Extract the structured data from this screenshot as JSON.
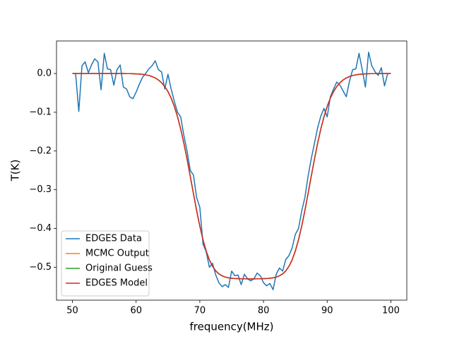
{
  "chart_data": {
    "type": "line",
    "xlabel": "frequency(MHz)",
    "ylabel": "T(K)",
    "x": [
      50,
      50.5,
      51,
      51.5,
      52,
      52.5,
      53,
      53.5,
      54,
      54.5,
      55,
      55.5,
      56,
      56.5,
      57,
      57.5,
      58,
      58.5,
      59,
      59.5,
      60,
      60.5,
      61,
      61.5,
      62,
      62.5,
      63,
      63.5,
      64,
      64.5,
      65,
      65.5,
      66,
      66.5,
      67,
      67.5,
      68,
      68.5,
      69,
      69.5,
      70,
      70.5,
      71,
      71.5,
      72,
      72.5,
      73,
      73.5,
      74,
      74.5,
      75,
      75.5,
      76,
      76.5,
      77,
      77.5,
      78,
      78.5,
      79,
      79.5,
      80,
      80.5,
      81,
      81.5,
      82,
      82.5,
      83,
      83.5,
      84,
      84.5,
      85,
      85.5,
      86,
      86.5,
      87,
      87.5,
      88,
      88.5,
      89,
      89.5,
      90,
      90.5,
      91,
      91.5,
      92,
      92.5,
      93,
      93.5,
      94,
      94.5,
      95,
      95.5,
      96,
      96.5,
      97,
      97.5,
      98,
      98.5,
      99,
      99.5,
      100
    ],
    "series": [
      {
        "name": "EDGES Data",
        "color": "#1f77b4",
        "values": [
          0.0,
          0.0,
          -0.098,
          0.02,
          0.03,
          0.002,
          0.022,
          0.038,
          0.03,
          -0.042,
          0.052,
          0.012,
          0.01,
          -0.03,
          0.01,
          0.022,
          -0.035,
          -0.04,
          -0.06,
          -0.065,
          -0.048,
          -0.028,
          -0.01,
          0.0,
          0.012,
          0.02,
          0.033,
          0.01,
          0.004,
          -0.04,
          -0.002,
          -0.04,
          -0.072,
          -0.1,
          -0.112,
          -0.16,
          -0.2,
          -0.25,
          -0.262,
          -0.32,
          -0.345,
          -0.44,
          -0.46,
          -0.5,
          -0.49,
          -0.52,
          -0.54,
          -0.55,
          -0.545,
          -0.552,
          -0.51,
          -0.522,
          -0.52,
          -0.545,
          -0.518,
          -0.53,
          -0.535,
          -0.53,
          -0.515,
          -0.522,
          -0.54,
          -0.548,
          -0.542,
          -0.558,
          -0.518,
          -0.502,
          -0.51,
          -0.48,
          -0.47,
          -0.45,
          -0.415,
          -0.4,
          -0.355,
          -0.32,
          -0.265,
          -0.22,
          -0.18,
          -0.14,
          -0.11,
          -0.09,
          -0.112,
          -0.06,
          -0.04,
          -0.022,
          -0.03,
          -0.045,
          -0.06,
          -0.02,
          0.01,
          0.012,
          0.052,
          0.01,
          -0.035,
          0.055,
          0.02,
          0.005,
          -0.005,
          0.015,
          -0.032,
          0.0,
          0.0
        ]
      },
      {
        "name": "MCMC Output",
        "color": "#ff7f0e",
        "values": [
          0,
          0,
          0,
          0,
          0,
          0,
          0,
          0,
          0,
          0,
          0,
          0,
          0,
          0,
          -0.0001,
          -0.0001,
          -0.0001,
          -0.0002,
          -0.0004,
          -0.0006,
          -0.0009,
          -0.0014,
          -0.0022,
          -0.0034,
          -0.0052,
          -0.0078,
          -0.0115,
          -0.0167,
          -0.0239,
          -0.0336,
          -0.0466,
          -0.0635,
          -0.0849,
          -0.1115,
          -0.1432,
          -0.1801,
          -0.2211,
          -0.265,
          -0.3099,
          -0.3536,
          -0.3939,
          -0.4291,
          -0.4582,
          -0.4809,
          -0.4976,
          -0.5094,
          -0.5172,
          -0.5223,
          -0.5254,
          -0.5273,
          -0.5285,
          -0.5291,
          -0.5295,
          -0.5298,
          -0.5299,
          -0.53,
          -0.53,
          -0.53,
          -0.5299,
          -0.5298,
          -0.5295,
          -0.5291,
          -0.5285,
          -0.5273,
          -0.5254,
          -0.5223,
          -0.5172,
          -0.5094,
          -0.4976,
          -0.4809,
          -0.4582,
          -0.4291,
          -0.3939,
          -0.3536,
          -0.3099,
          -0.265,
          -0.2211,
          -0.1801,
          -0.1432,
          -0.1115,
          -0.0849,
          -0.0635,
          -0.0466,
          -0.0336,
          -0.0239,
          -0.0167,
          -0.0115,
          -0.0078,
          -0.0052,
          -0.0034,
          -0.0022,
          -0.0014,
          -0.0009,
          -0.0006,
          -0.0004,
          -0.0002,
          -0.0001,
          -0.0001,
          -0.0001,
          0,
          0
        ]
      },
      {
        "name": "Original Guess",
        "color": "#2ca02c",
        "values": [
          0,
          0,
          0,
          0,
          0,
          0,
          0,
          0,
          0,
          0,
          0,
          0,
          0,
          0,
          -0.0001,
          -0.0001,
          -0.0001,
          -0.0002,
          -0.0004,
          -0.0006,
          -0.0009,
          -0.0014,
          -0.0022,
          -0.0034,
          -0.0052,
          -0.0078,
          -0.0115,
          -0.0167,
          -0.0239,
          -0.0336,
          -0.0466,
          -0.0635,
          -0.0849,
          -0.1115,
          -0.1432,
          -0.1801,
          -0.2211,
          -0.265,
          -0.3099,
          -0.3536,
          -0.3939,
          -0.4291,
          -0.4582,
          -0.4809,
          -0.4976,
          -0.5094,
          -0.5172,
          -0.5223,
          -0.5254,
          -0.5273,
          -0.5285,
          -0.5291,
          -0.5295,
          -0.5298,
          -0.5299,
          -0.53,
          -0.53,
          -0.53,
          -0.5299,
          -0.5298,
          -0.5295,
          -0.5291,
          -0.5285,
          -0.5273,
          -0.5254,
          -0.5223,
          -0.5172,
          -0.5094,
          -0.4976,
          -0.4809,
          -0.4582,
          -0.4291,
          -0.3939,
          -0.3536,
          -0.3099,
          -0.265,
          -0.2211,
          -0.1801,
          -0.1432,
          -0.1115,
          -0.0849,
          -0.0635,
          -0.0466,
          -0.0336,
          -0.0239,
          -0.0167,
          -0.0115,
          -0.0078,
          -0.0052,
          -0.0034,
          -0.0022,
          -0.0014,
          -0.0009,
          -0.0006,
          -0.0004,
          -0.0002,
          -0.0001,
          -0.0001,
          -0.0001,
          0,
          0
        ]
      },
      {
        "name": "EDGES Model",
        "color": "#d62728",
        "values": [
          0,
          0,
          0,
          0,
          0,
          0,
          0,
          0,
          0,
          0,
          0,
          0,
          0,
          0,
          -0.0001,
          -0.0001,
          -0.0001,
          -0.0002,
          -0.0004,
          -0.0006,
          -0.0009,
          -0.0014,
          -0.0022,
          -0.0034,
          -0.0052,
          -0.0078,
          -0.0115,
          -0.0167,
          -0.0239,
          -0.0336,
          -0.0466,
          -0.0635,
          -0.0849,
          -0.1115,
          -0.1432,
          -0.1801,
          -0.2211,
          -0.265,
          -0.3099,
          -0.3536,
          -0.3939,
          -0.4291,
          -0.4582,
          -0.4809,
          -0.4976,
          -0.5094,
          -0.5172,
          -0.5223,
          -0.5254,
          -0.5273,
          -0.5285,
          -0.5291,
          -0.5295,
          -0.5298,
          -0.5299,
          -0.53,
          -0.53,
          -0.53,
          -0.5299,
          -0.5298,
          -0.5295,
          -0.5291,
          -0.5285,
          -0.5273,
          -0.5254,
          -0.5223,
          -0.5172,
          -0.5094,
          -0.4976,
          -0.4809,
          -0.4582,
          -0.4291,
          -0.3939,
          -0.3536,
          -0.3099,
          -0.265,
          -0.2211,
          -0.1801,
          -0.1432,
          -0.1115,
          -0.0849,
          -0.0635,
          -0.0466,
          -0.0336,
          -0.0239,
          -0.0167,
          -0.0115,
          -0.0078,
          -0.0052,
          -0.0034,
          -0.0022,
          -0.0014,
          -0.0009,
          -0.0006,
          -0.0004,
          -0.0002,
          -0.0001,
          -0.0001,
          -0.0001,
          0,
          0
        ]
      }
    ],
    "xlim": [
      47.5,
      102.5
    ],
    "xticks": [
      50,
      60,
      70,
      80,
      90,
      100
    ],
    "ylim": [
      -0.585,
      0.084
    ],
    "yticks": [
      {
        "value": 0,
        "label": "0.0"
      },
      {
        "value": -0.1,
        "label": "−0.1"
      },
      {
        "value": -0.2,
        "label": "−0.2"
      },
      {
        "value": -0.3,
        "label": "−0.3"
      },
      {
        "value": -0.4,
        "label": "−0.4"
      },
      {
        "value": -0.5,
        "label": "−0.5"
      }
    ],
    "legend": "lower left",
    "grid": false
  }
}
